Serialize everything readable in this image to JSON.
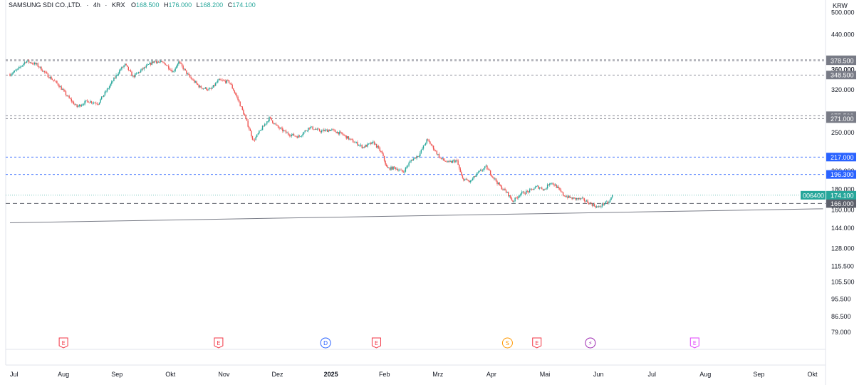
{
  "legend": {
    "symbol": "SAMSUNG SDI CO.,LTD.",
    "interval": "4h",
    "exchange": "KRX",
    "open_label": "O",
    "open": "168.500",
    "high_label": "H",
    "high": "176.000",
    "low_label": "L",
    "low": "168.200",
    "close_label": "C",
    "close": "174.100"
  },
  "currency": "KRW",
  "colors": {
    "up": "#26a69a",
    "down": "#ef5350",
    "hline_blue": "#2962ff",
    "hline_gray": "#787b86",
    "label_gray": "#787b86",
    "label_blue": "#2962ff",
    "price_green": "#26a69a",
    "trendline": "#787b86",
    "event_earnings": "#f23645",
    "event_dividend": "#2962ff",
    "event_split": "#ff9800",
    "event_flash": "#9c27b0",
    "event_future": "#e040fb"
  },
  "chart_data": {
    "type": "candlestick",
    "y_scale": "log",
    "ylim": [
      73.0,
      520.0
    ],
    "y_ticks": [
      "500.000",
      "440.000",
      "360.000",
      "320.000",
      "250.000",
      "200.000",
      "180.000",
      "160.000",
      "144.000",
      "128.000",
      "115.500",
      "105.500",
      "95.500",
      "86.500",
      "79.000"
    ],
    "x_labels": [
      {
        "label": "Jul",
        "month": 0,
        "bold": false
      },
      {
        "label": "Aug",
        "month": 1,
        "bold": false
      },
      {
        "label": "Sep",
        "month": 2,
        "bold": false
      },
      {
        "label": "Okt",
        "month": 3,
        "bold": false
      },
      {
        "label": "Nov",
        "month": 4,
        "bold": false
      },
      {
        "label": "Dez",
        "month": 5,
        "bold": false
      },
      {
        "label": "2025",
        "month": 6,
        "bold": true
      },
      {
        "label": "Feb",
        "month": 7,
        "bold": false
      },
      {
        "label": "Mrz",
        "month": 8,
        "bold": false
      },
      {
        "label": "Apr",
        "month": 9,
        "bold": false
      },
      {
        "label": "Mai",
        "month": 10,
        "bold": false
      },
      {
        "label": "Jun",
        "month": 11,
        "bold": false
      },
      {
        "label": "Jul",
        "month": 12,
        "bold": false
      },
      {
        "label": "Aug",
        "month": 13,
        "bold": false
      },
      {
        "label": "Sep",
        "month": 14,
        "bold": false
      },
      {
        "label": "Okt",
        "month": 15,
        "bold": false
      }
    ],
    "price_path": [
      {
        "m": 0.0,
        "p": 350
      },
      {
        "m": 0.15,
        "p": 360
      },
      {
        "m": 0.3,
        "p": 378
      },
      {
        "m": 0.5,
        "p": 370
      },
      {
        "m": 0.7,
        "p": 348
      },
      {
        "m": 0.9,
        "p": 330
      },
      {
        "m": 1.1,
        "p": 305
      },
      {
        "m": 1.25,
        "p": 290
      },
      {
        "m": 1.45,
        "p": 300
      },
      {
        "m": 1.65,
        "p": 296
      },
      {
        "m": 1.85,
        "p": 325
      },
      {
        "m": 2.05,
        "p": 358
      },
      {
        "m": 2.15,
        "p": 370
      },
      {
        "m": 2.3,
        "p": 345
      },
      {
        "m": 2.5,
        "p": 362
      },
      {
        "m": 2.7,
        "p": 378
      },
      {
        "m": 2.9,
        "p": 372
      },
      {
        "m": 3.05,
        "p": 355
      },
      {
        "m": 3.15,
        "p": 376
      },
      {
        "m": 3.35,
        "p": 345
      },
      {
        "m": 3.55,
        "p": 325
      },
      {
        "m": 3.75,
        "p": 320
      },
      {
        "m": 3.9,
        "p": 338
      },
      {
        "m": 4.1,
        "p": 335
      },
      {
        "m": 4.25,
        "p": 305
      },
      {
        "m": 4.4,
        "p": 272
      },
      {
        "m": 4.55,
        "p": 238
      },
      {
        "m": 4.7,
        "p": 255
      },
      {
        "m": 4.85,
        "p": 272
      },
      {
        "m": 5.0,
        "p": 258
      },
      {
        "m": 5.2,
        "p": 248
      },
      {
        "m": 5.4,
        "p": 244
      },
      {
        "m": 5.6,
        "p": 258
      },
      {
        "m": 5.8,
        "p": 252
      },
      {
        "m": 6.0,
        "p": 254
      },
      {
        "m": 6.2,
        "p": 248
      },
      {
        "m": 6.4,
        "p": 238
      },
      {
        "m": 6.6,
        "p": 230
      },
      {
        "m": 6.8,
        "p": 236
      },
      {
        "m": 6.95,
        "p": 222
      },
      {
        "m": 7.05,
        "p": 203
      },
      {
        "m": 7.2,
        "p": 204
      },
      {
        "m": 7.35,
        "p": 199
      },
      {
        "m": 7.5,
        "p": 213
      },
      {
        "m": 7.65,
        "p": 220
      },
      {
        "m": 7.8,
        "p": 240
      },
      {
        "m": 7.95,
        "p": 225
      },
      {
        "m": 8.05,
        "p": 215
      },
      {
        "m": 8.2,
        "p": 210
      },
      {
        "m": 8.35,
        "p": 213
      },
      {
        "m": 8.45,
        "p": 192
      },
      {
        "m": 8.6,
        "p": 188
      },
      {
        "m": 8.75,
        "p": 198
      },
      {
        "m": 8.9,
        "p": 205
      },
      {
        "m": 9.0,
        "p": 196
      },
      {
        "m": 9.15,
        "p": 184
      },
      {
        "m": 9.3,
        "p": 176
      },
      {
        "m": 9.4,
        "p": 168
      },
      {
        "m": 9.55,
        "p": 176
      },
      {
        "m": 9.7,
        "p": 178
      },
      {
        "m": 9.85,
        "p": 183
      },
      {
        "m": 10.0,
        "p": 180
      },
      {
        "m": 10.1,
        "p": 188
      },
      {
        "m": 10.2,
        "p": 184
      },
      {
        "m": 10.35,
        "p": 174
      },
      {
        "m": 10.5,
        "p": 171
      },
      {
        "m": 10.7,
        "p": 170
      },
      {
        "m": 10.85,
        "p": 166
      },
      {
        "m": 11.0,
        "p": 162
      },
      {
        "m": 11.1,
        "p": 166
      },
      {
        "m": 11.2,
        "p": 167
      },
      {
        "m": 11.26,
        "p": 174
      }
    ],
    "horizontal_levels": [
      {
        "value": 380.5,
        "label": "380.500",
        "style": "gray"
      },
      {
        "value": 378.5,
        "label": "378.500",
        "style": "gray"
      },
      {
        "value": 360.0,
        "label": "360.000",
        "style": "gray_partial"
      },
      {
        "value": 348.5,
        "label": "348.500",
        "style": "gray"
      },
      {
        "value": 275.5,
        "label": "275.500",
        "style": "gray"
      },
      {
        "value": 271.0,
        "label": "271.000",
        "style": "gray"
      },
      {
        "value": 217.0,
        "label": "217.000",
        "style": "blue"
      },
      {
        "value": 196.3,
        "label": "196.300",
        "style": "blue"
      },
      {
        "value": 166.0,
        "label": "166.000",
        "style": "gray_dark"
      }
    ],
    "last_price": {
      "ticker": "006400",
      "value": 174.1,
      "label": "174.100"
    },
    "trendline": {
      "start": {
        "m": 0.0,
        "p": 148.5
      },
      "end": {
        "m": 15.2,
        "p": 161.0
      }
    },
    "events": [
      {
        "type": "earnings",
        "letter": "E",
        "m": 1.0
      },
      {
        "type": "earnings",
        "letter": "E",
        "m": 3.9
      },
      {
        "type": "dividend",
        "letter": "D",
        "m": 5.9
      },
      {
        "type": "earnings",
        "letter": "E",
        "m": 6.85
      },
      {
        "type": "split",
        "letter": "S",
        "m": 9.3
      },
      {
        "type": "earnings",
        "letter": "E",
        "m": 9.85
      },
      {
        "type": "flash",
        "letter": "⚡",
        "m": 10.85
      },
      {
        "type": "future",
        "letter": "E",
        "m": 12.8
      }
    ]
  }
}
